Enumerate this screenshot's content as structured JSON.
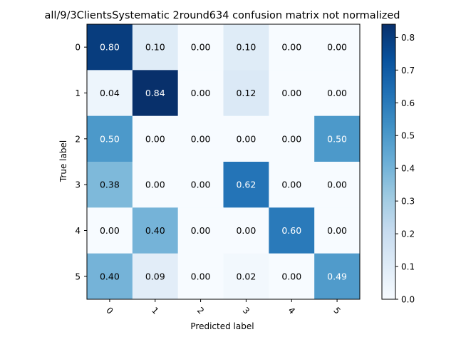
{
  "chart_data": {
    "type": "heatmap",
    "title": "all/9/3ClientsSystematic 2round634 confusion matrix not normalized",
    "xlabel": "Predicted label",
    "ylabel": "True label",
    "x_categories": [
      "0",
      "1",
      "2",
      "3",
      "4",
      "5"
    ],
    "y_categories": [
      "0",
      "1",
      "2",
      "3",
      "4",
      "5"
    ],
    "values": [
      [
        0.8,
        0.1,
        0.0,
        0.1,
        0.0,
        0.0
      ],
      [
        0.04,
        0.84,
        0.0,
        0.12,
        0.0,
        0.0
      ],
      [
        0.5,
        0.0,
        0.0,
        0.0,
        0.0,
        0.5
      ],
      [
        0.38,
        0.0,
        0.0,
        0.62,
        0.0,
        0.0
      ],
      [
        0.0,
        0.4,
        0.0,
        0.0,
        0.6,
        0.0
      ],
      [
        0.4,
        0.09,
        0.0,
        0.02,
        0.0,
        0.49
      ]
    ],
    "cell_labels": [
      [
        "0.80",
        "0.10",
        "0.00",
        "0.10",
        "0.00",
        "0.00"
      ],
      [
        "0.04",
        "0.84",
        "0.00",
        "0.12",
        "0.00",
        "0.00"
      ],
      [
        "0.50",
        "0.00",
        "0.00",
        "0.00",
        "0.00",
        "0.50"
      ],
      [
        "0.38",
        "0.00",
        "0.00",
        "0.62",
        "0.00",
        "0.00"
      ],
      [
        "0.00",
        "0.40",
        "0.00",
        "0.00",
        "0.60",
        "0.00"
      ],
      [
        "0.40",
        "0.09",
        "0.00",
        "0.02",
        "0.00",
        "0.49"
      ]
    ],
    "colormap": "Blues",
    "colorbar": {
      "range": [
        0.0,
        0.84
      ],
      "ticks": [
        0.0,
        0.1,
        0.2,
        0.3,
        0.4,
        0.5,
        0.6,
        0.7,
        0.8
      ],
      "tick_labels": [
        "0.0",
        "0.1",
        "0.2",
        "0.3",
        "0.4",
        "0.5",
        "0.6",
        "0.7",
        "0.8"
      ]
    },
    "x_tick_rotation": 45,
    "grid": false
  }
}
